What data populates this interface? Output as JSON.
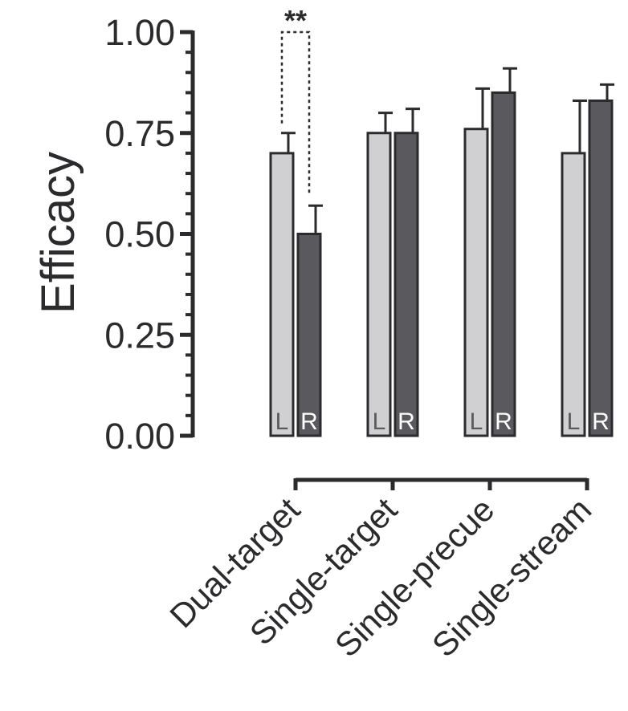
{
  "chart_data": {
    "type": "bar",
    "ylabel": "Efficacy",
    "xlabel": "",
    "ylim": [
      0,
      1
    ],
    "yticks": [
      "0.00",
      "0.25",
      "0.50",
      "0.75",
      "1.00"
    ],
    "ytick_values": [
      0,
      0.25,
      0.5,
      0.75,
      1.0
    ],
    "categories": [
      "Dual-target",
      "Single-target",
      "Single-precue",
      "Single-stream"
    ],
    "series": [
      {
        "name": "L",
        "color": "#d0d0d2",
        "values": [
          0.7,
          0.75,
          0.76,
          0.7
        ],
        "errors": [
          0.05,
          0.05,
          0.1,
          0.13
        ]
      },
      {
        "name": "R",
        "color": "#5a5a5e",
        "values": [
          0.5,
          0.75,
          0.85,
          0.83
        ],
        "errors": [
          0.07,
          0.06,
          0.06,
          0.04
        ]
      }
    ],
    "annotation": {
      "text": "**",
      "category_index": 0
    },
    "grid": false,
    "legend": "none"
  }
}
